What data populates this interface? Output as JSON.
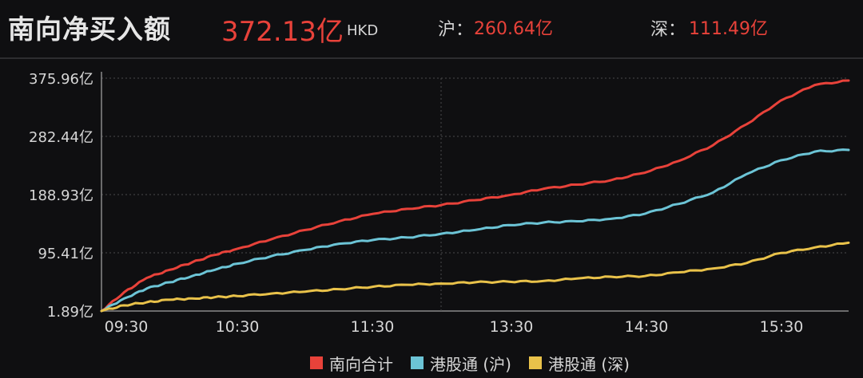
{
  "header": {
    "title": "南向净买入额",
    "total": "372.13亿",
    "unit": "HKD",
    "sh_label": "沪：",
    "sh_value": "260.64亿",
    "sz_label": "深：",
    "sz_value": "111.49亿"
  },
  "colors": {
    "red": "#e8423a",
    "cyan": "#6cc4d6",
    "gold": "#e9c24a",
    "background": "#0f0f11",
    "grid": "#555555"
  },
  "chart_data": {
    "type": "line",
    "title": "南向净买入额",
    "xlabel": "",
    "ylabel": "",
    "x_ticks": [
      "09:30",
      "10:30",
      "11:30",
      "13:30",
      "14:30",
      "15:30"
    ],
    "y_ticks": [
      "375.96亿",
      "282.44亿",
      "188.93亿",
      "95.41亿",
      "1.89亿"
    ],
    "y_tick_values": [
      375.96,
      282.44,
      188.93,
      95.41,
      1.89
    ],
    "ylim": [
      1.89,
      375.96
    ],
    "x_unit": "trading minutes since 09:30",
    "xlim": [
      0,
      330
    ],
    "x": [
      0,
      10,
      20,
      30,
      40,
      50,
      60,
      75,
      90,
      105,
      120,
      135,
      150,
      165,
      180,
      195,
      210,
      225,
      240,
      255,
      270,
      285,
      300,
      315,
      330
    ],
    "series": [
      {
        "name": "南向合计",
        "color": "#e8423a",
        "values": [
          1.9,
          32,
          55,
          68,
          80,
          92,
          102,
          117,
          132,
          146,
          158,
          166,
          172,
          180,
          188,
          198,
          205,
          212,
          224,
          243,
          268,
          302,
          340,
          365,
          372.13
        ]
      },
      {
        "name": "港股通 (沪)",
        "color": "#6cc4d6",
        "values": [
          1.9,
          22,
          38,
          48,
          58,
          68,
          78,
          90,
          100,
          110,
          116,
          120,
          126,
          132,
          140,
          144,
          146,
          150,
          158,
          174,
          192,
          222,
          244,
          258,
          260.64
        ]
      },
      {
        "name": "港股通 (深)",
        "color": "#e9c24a",
        "values": [
          1.9,
          11,
          16,
          20,
          22,
          24,
          26,
          30,
          33,
          37,
          41,
          44,
          46,
          48,
          49,
          50,
          54,
          57,
          58,
          64,
          70,
          79,
          95,
          104,
          111.49
        ]
      }
    ],
    "grid": true,
    "legend_position": "bottom"
  }
}
